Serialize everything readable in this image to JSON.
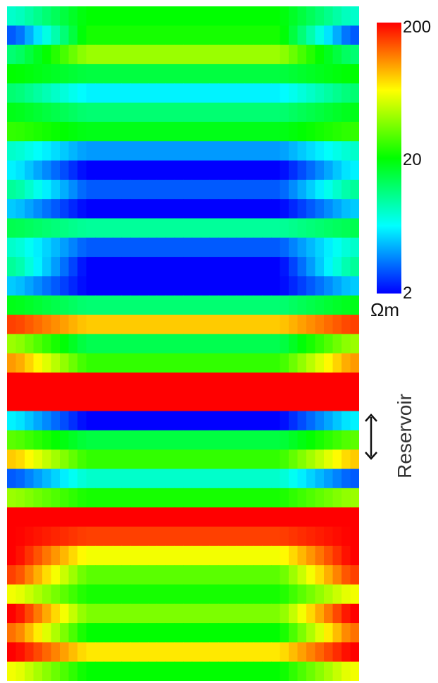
{
  "chart_data": {
    "type": "heatmap",
    "title": "",
    "xlabel": "",
    "ylabel": "",
    "colorbar": {
      "scale": "log",
      "min": 2,
      "max": 200,
      "ticks": [
        "200",
        "20",
        "2"
      ],
      "unit": "Ωm",
      "colors": [
        "#0000ff",
        "#00ffff",
        "#00ff00",
        "#ffff00",
        "#ff0000"
      ]
    },
    "resistivity_layers_ohm_m": [
      {
        "center_ohm_m": 20,
        "edge_ohm_m": 8
      },
      {
        "center_ohm_m": 22,
        "edge_ohm_m": 3
      },
      {
        "center_ohm_m": 40,
        "edge_ohm_m": 12
      },
      {
        "center_ohm_m": 15,
        "edge_ohm_m": 20
      },
      {
        "center_ohm_m": 6,
        "edge_ohm_m": 12
      },
      {
        "center_ohm_m": 12,
        "edge_ohm_m": 18
      },
      {
        "center_ohm_m": 18,
        "edge_ohm_m": 25
      },
      {
        "center_ohm_m": 4,
        "edge_ohm_m": 8
      },
      {
        "center_ohm_m": 2,
        "edge_ohm_m": 6
      },
      {
        "center_ohm_m": 3,
        "edge_ohm_m": 10
      },
      {
        "center_ohm_m": 2,
        "edge_ohm_m": 5
      },
      {
        "center_ohm_m": 10,
        "edge_ohm_m": 14
      },
      {
        "center_ohm_m": 3,
        "edge_ohm_m": 8
      },
      {
        "center_ohm_m": 2,
        "edge_ohm_m": 10
      },
      {
        "center_ohm_m": 2,
        "edge_ohm_m": 5
      },
      {
        "center_ohm_m": 12,
        "edge_ohm_m": 18
      },
      {
        "center_ohm_m": 80,
        "edge_ohm_m": 150
      },
      {
        "center_ohm_m": 14,
        "edge_ohm_m": 40
      },
      {
        "center_ohm_m": 25,
        "edge_ohm_m": 100
      },
      {
        "center_ohm_m": 200,
        "edge_ohm_m": 200
      },
      {
        "center_ohm_m": 200,
        "edge_ohm_m": 200
      },
      {
        "center_ohm_m": 2,
        "edge_ohm_m": 6
      },
      {
        "center_ohm_m": 15,
        "edge_ohm_m": 30
      },
      {
        "center_ohm_m": 25,
        "edge_ohm_m": 80
      },
      {
        "center_ohm_m": 8,
        "edge_ohm_m": 3
      },
      {
        "center_ohm_m": 22,
        "edge_ohm_m": 40
      },
      {
        "center_ohm_m": 200,
        "edge_ohm_m": 200
      },
      {
        "center_ohm_m": 150,
        "edge_ohm_m": 200
      },
      {
        "center_ohm_m": 60,
        "edge_ohm_m": 200
      },
      {
        "center_ohm_m": 30,
        "edge_ohm_m": 150
      },
      {
        "center_ohm_m": 22,
        "edge_ohm_m": 60
      },
      {
        "center_ohm_m": 35,
        "edge_ohm_m": 200
      },
      {
        "center_ohm_m": 20,
        "edge_ohm_m": 120
      },
      {
        "center_ohm_m": 70,
        "edge_ohm_m": 200
      },
      {
        "center_ohm_m": 20,
        "edge_ohm_m": 60
      }
    ],
    "annotations": [
      {
        "text": "Reservoir",
        "marker": "double-headed vertical arrow"
      }
    ]
  }
}
